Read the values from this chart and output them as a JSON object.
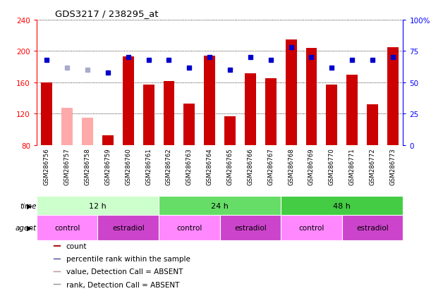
{
  "title": "GDS3217 / 238295_at",
  "samples": [
    "GSM286756",
    "GSM286757",
    "GSM286758",
    "GSM286759",
    "GSM286760",
    "GSM286761",
    "GSM286762",
    "GSM286763",
    "GSM286764",
    "GSM286765",
    "GSM286766",
    "GSM286767",
    "GSM286768",
    "GSM286769",
    "GSM286770",
    "GSM286771",
    "GSM286772",
    "GSM286773"
  ],
  "counts": [
    160,
    128,
    115,
    93,
    193,
    157,
    162,
    133,
    194,
    117,
    172,
    165,
    215,
    204,
    157,
    170,
    132,
    205
  ],
  "absent": [
    false,
    true,
    true,
    false,
    false,
    false,
    false,
    false,
    false,
    false,
    false,
    false,
    false,
    false,
    false,
    false,
    false,
    false
  ],
  "percentile_ranks": [
    68,
    62,
    60,
    58,
    70,
    68,
    68,
    62,
    70,
    60,
    70,
    68,
    78,
    70,
    62,
    68,
    68,
    70
  ],
  "rank_absent": [
    false,
    true,
    true,
    false,
    false,
    false,
    false,
    false,
    false,
    false,
    false,
    false,
    false,
    false,
    false,
    false,
    false,
    false
  ],
  "bar_color_present": "#cc0000",
  "bar_color_absent": "#ffaaaa",
  "rank_color_present": "#0000cc",
  "rank_color_absent": "#aaaacc",
  "ylim_left": [
    80,
    240
  ],
  "ylim_right": [
    0,
    100
  ],
  "yticks_left": [
    80,
    120,
    160,
    200,
    240
  ],
  "yticks_right": [
    0,
    25,
    50,
    75,
    100
  ],
  "yticklabels_right": [
    "0",
    "25",
    "50",
    "75",
    "100%"
  ],
  "time_groups": [
    {
      "label": "12 h",
      "start": 0,
      "end": 5,
      "color": "#ccffcc"
    },
    {
      "label": "24 h",
      "start": 6,
      "end": 11,
      "color": "#66dd66"
    },
    {
      "label": "48 h",
      "start": 12,
      "end": 17,
      "color": "#44cc44"
    }
  ],
  "agent_groups": [
    {
      "label": "control",
      "start": 0,
      "end": 2,
      "color": "#ff88ff"
    },
    {
      "label": "estradiol",
      "start": 3,
      "end": 5,
      "color": "#cc44cc"
    },
    {
      "label": "control",
      "start": 6,
      "end": 8,
      "color": "#ff88ff"
    },
    {
      "label": "estradiol",
      "start": 9,
      "end": 11,
      "color": "#cc44cc"
    },
    {
      "label": "control",
      "start": 12,
      "end": 14,
      "color": "#ff88ff"
    },
    {
      "label": "estradiol",
      "start": 15,
      "end": 17,
      "color": "#cc44cc"
    }
  ],
  "legend_items": [
    {
      "label": "count",
      "color": "#cc0000",
      "marker": "s"
    },
    {
      "label": "percentile rank within the sample",
      "color": "#0000cc",
      "marker": "s"
    },
    {
      "label": "value, Detection Call = ABSENT",
      "color": "#ffaaaa",
      "marker": "s"
    },
    {
      "label": "rank, Detection Call = ABSENT",
      "color": "#aaaacc",
      "marker": "s"
    }
  ],
  "bar_width": 0.55,
  "chart_bg": "#ffffff",
  "plot_bg": "#ffffff",
  "xtick_bg": "#cccccc"
}
